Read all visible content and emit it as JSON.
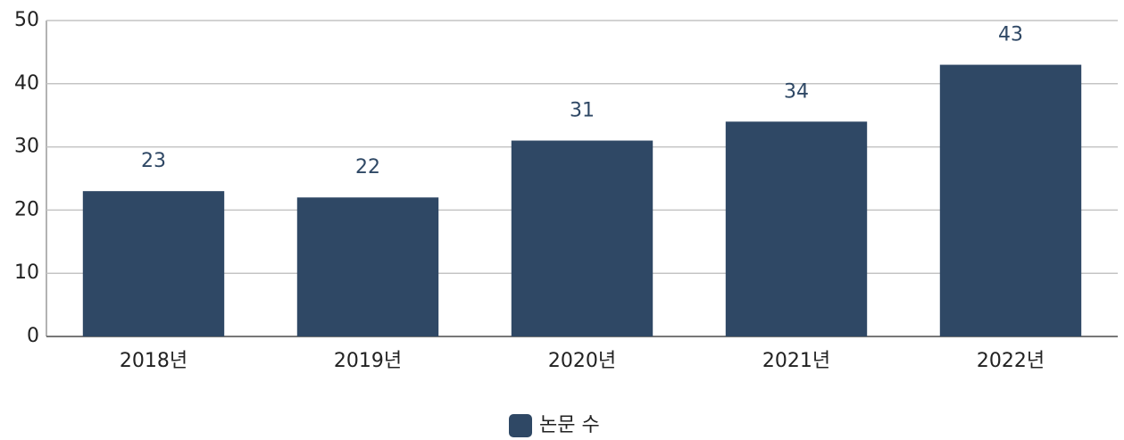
{
  "chart_data": {
    "type": "bar",
    "categories": [
      "2018년",
      "2019년",
      "2020년",
      "2021년",
      "2022년"
    ],
    "series": [
      {
        "name": "논문 수",
        "color": "#2f4865",
        "values": [
          23,
          22,
          31,
          34,
          43
        ]
      }
    ],
    "ylim": [
      0,
      50
    ],
    "yticks": [
      0,
      10,
      20,
      30,
      40,
      50
    ],
    "grid": true,
    "legend": "bottom"
  }
}
